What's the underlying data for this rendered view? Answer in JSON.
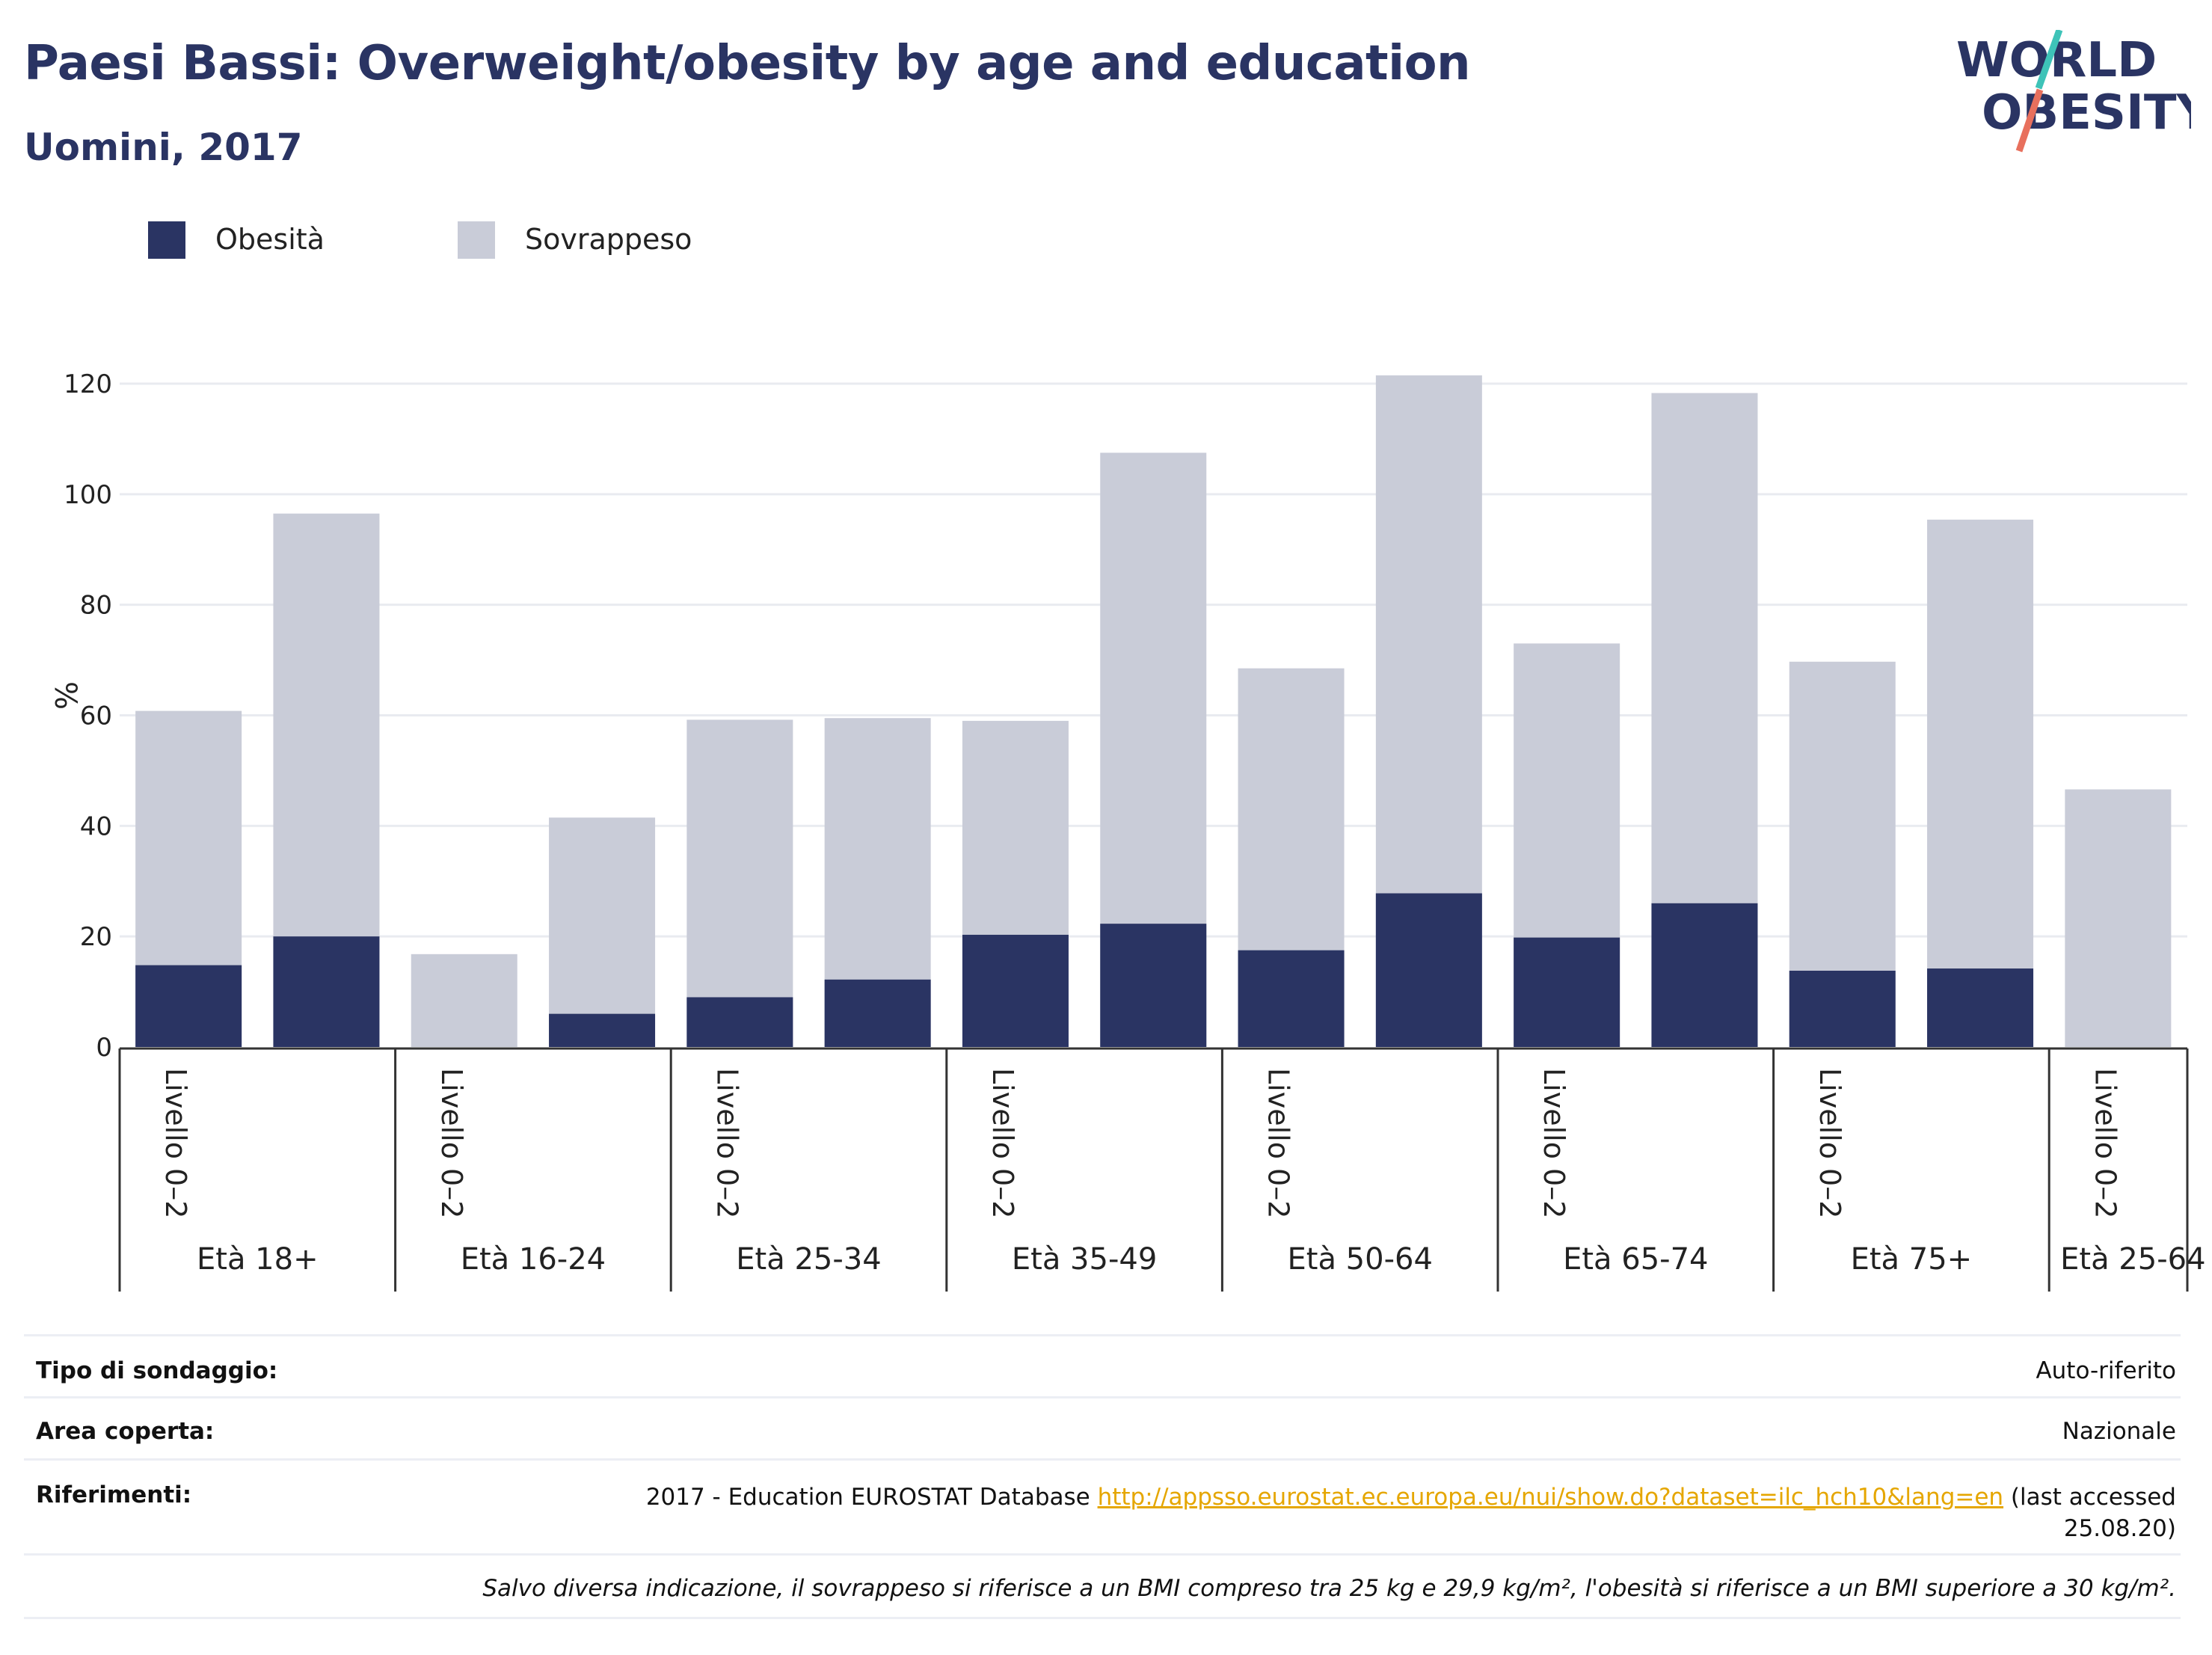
{
  "header": {
    "title": "Paesi Bassi: Overweight/obesity by age and education",
    "subtitle": "Uomini, 2017"
  },
  "logo": {
    "line1": "WORLD",
    "line2": "OBESITY",
    "slash_colors": [
      "#3ec3b8",
      "#e8705d"
    ],
    "text_color": "#2a3463"
  },
  "legend": [
    {
      "label": "Obesità",
      "color": "#2a3463"
    },
    {
      "label": "Sovrappeso",
      "color": "#c9ccd8"
    }
  ],
  "chart_data": {
    "type": "bar",
    "stacked": true,
    "ylabel": "%",
    "ylim": [
      0,
      125
    ],
    "yticks": [
      0,
      20,
      40,
      60,
      80,
      100,
      120
    ],
    "grid": true,
    "legend_position": "top-left",
    "groups": [
      "Età 18+",
      "Età 16-24",
      "Età 25-34",
      "Età 35-49",
      "Età 50-64",
      "Età 65-74",
      "Età 75+",
      "Età 25-64"
    ],
    "bars": [
      {
        "group": "Età 18+",
        "label": "Livello 0–2",
        "obesita": 14.8,
        "total": 60.8
      },
      {
        "group": "Età 18+",
        "label": "",
        "obesita": 20.0,
        "total": 96.5
      },
      {
        "group": "Età 16-24",
        "label": "Livello 0–2",
        "obesita": 0,
        "total": 16.8
      },
      {
        "group": "Età 16-24",
        "label": "",
        "obesita": 6.0,
        "total": 41.5
      },
      {
        "group": "Età 25-34",
        "label": "Livello 0–2",
        "obesita": 9.0,
        "total": 59.2
      },
      {
        "group": "Età 25-34",
        "label": "",
        "obesita": 12.2,
        "total": 59.5
      },
      {
        "group": "Età 35-49",
        "label": "Livello 0–2",
        "obesita": 20.3,
        "total": 59.0
      },
      {
        "group": "Età 35-49",
        "label": "",
        "obesita": 22.3,
        "total": 107.5
      },
      {
        "group": "Età 50-64",
        "label": "Livello 0–2",
        "obesita": 17.5,
        "total": 68.5
      },
      {
        "group": "Età 50-64",
        "label": "",
        "obesita": 27.8,
        "total": 121.5
      },
      {
        "group": "Età 65-74",
        "label": "Livello 0–2",
        "obesita": 19.8,
        "total": 73.0
      },
      {
        "group": "Età 65-74",
        "label": "",
        "obesita": 26.0,
        "total": 118.3
      },
      {
        "group": "Età 75+",
        "label": "Livello 0–2",
        "obesita": 13.8,
        "total": 69.7
      },
      {
        "group": "Età 75+",
        "label": "",
        "obesita": 14.2,
        "total": 95.4
      },
      {
        "group": "Età 25-64",
        "label": "Livello 0–2",
        "obesita": 0,
        "total": 46.6
      }
    ],
    "series": [
      {
        "name": "Obesità",
        "color": "#2a3463"
      },
      {
        "name": "Sovrappeso",
        "color": "#c9ccd8"
      }
    ]
  },
  "info": {
    "survey_key": "Tipo di sondaggio:",
    "survey_val": "Auto-riferito",
    "area_key": "Area coperta:",
    "area_val": "Nazionale",
    "ref_key": "Riferimenti:",
    "ref_pre": "2017 - Education EUROSTAT Database ",
    "ref_link": "http://appsso.eurostat.ec.europa.eu/nui/show.do?dataset=ilc_hch10&lang=en",
    "ref_post": " (last accessed",
    "ref_date": "25.08.20)",
    "note": "Salvo diversa indicazione, il sovrappeso si riferisce a un BMI compreso tra 25 kg e 29,9 kg/m², l'obesità si riferisce a un BMI superiore a 30 kg/m²."
  }
}
